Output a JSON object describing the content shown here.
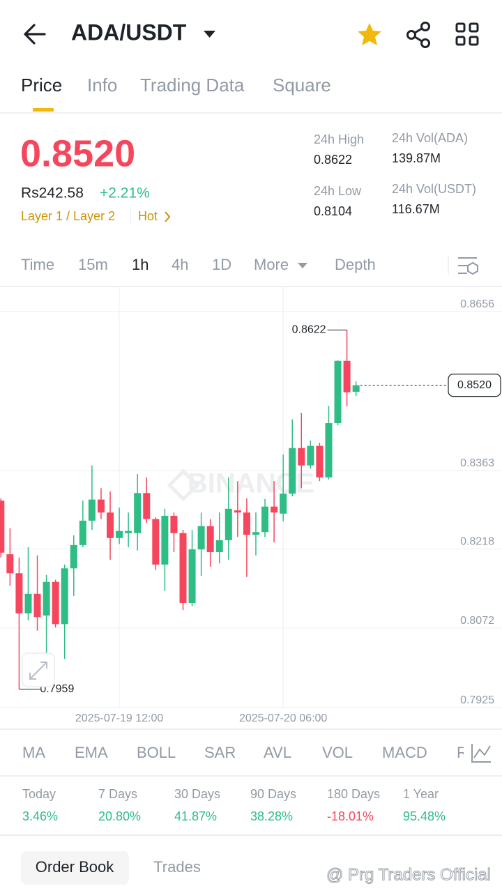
{
  "header": {
    "title": "ADA/USDT"
  },
  "tabs": [
    "Price",
    "Info",
    "Trading Data",
    "Square"
  ],
  "price": {
    "last": "0.8520",
    "fiat": "Rs242.58",
    "change": "+2.21%",
    "tags": [
      "Layer 1 / Layer 2",
      "Hot"
    ]
  },
  "stats": [
    {
      "label": "24h High",
      "value": "0.8622"
    },
    {
      "label": "24h Vol(ADA)",
      "value": "139.87M"
    },
    {
      "label": "24h Low",
      "value": "0.8104"
    },
    {
      "label": "24h Vol(USDT)",
      "value": "116.67M"
    }
  ],
  "intervals": [
    "Time",
    "15m",
    "1h",
    "4h",
    "1D",
    "More",
    "Depth"
  ],
  "chart_data": {
    "type": "candlestick",
    "categories": [
      null,
      null,
      null,
      null,
      null,
      null,
      null,
      null,
      null,
      null,
      null,
      null,
      null,
      "2025-07-19 12:00",
      null,
      null,
      null,
      null,
      null,
      null,
      null,
      null,
      null,
      null,
      null,
      null,
      null,
      null,
      null,
      null,
      null,
      "2025-07-20 06:00",
      null,
      null,
      null,
      null,
      null,
      null,
      null,
      null
    ],
    "open": [
      0.8307,
      0.8208,
      0.8173,
      0.8099,
      0.8135,
      0.8095,
      0.8157,
      0.8079,
      0.8182,
      0.8225,
      0.827,
      0.8309,
      0.8285,
      0.8238,
      0.8247,
      0.8247,
      0.8321,
      0.8273,
      0.8189,
      0.8279,
      0.8247,
      0.8118,
      0.8217,
      0.826,
      0.8212,
      0.8234,
      0.8289,
      0.8285,
      0.8244,
      0.8249,
      0.8296,
      0.8283,
      0.832,
      0.8404,
      0.8372,
      0.8408,
      0.835,
      0.845,
      0.8565,
      0.8508
    ],
    "high": [
      0.8311,
      0.8256,
      0.8202,
      0.8221,
      0.8206,
      0.817,
      0.8161,
      0.8189,
      0.8243,
      0.8307,
      0.8372,
      0.833,
      0.8324,
      0.8294,
      0.8285,
      0.8356,
      0.835,
      0.8276,
      0.8292,
      0.8285,
      0.8253,
      0.8253,
      0.8285,
      0.8273,
      0.8285,
      0.835,
      0.8343,
      0.8311,
      0.8285,
      0.831,
      0.8343,
      0.8392,
      0.8457,
      0.8469,
      0.8418,
      0.8414,
      0.8482,
      0.8566,
      0.8622,
      0.8527
    ],
    "low": [
      0.8202,
      0.815,
      0.7959,
      0.8086,
      0.8067,
      0.8024,
      0.8073,
      0.8015,
      0.8131,
      0.8221,
      0.8253,
      0.8273,
      0.8198,
      0.8227,
      0.8221,
      0.8215,
      0.8266,
      0.8179,
      0.814,
      0.8212,
      0.8105,
      0.8112,
      0.8168,
      0.8185,
      0.8191,
      0.8198,
      0.824,
      0.8166,
      0.8206,
      0.824,
      0.823,
      0.8269,
      0.8315,
      0.833,
      0.8366,
      0.8343,
      0.8346,
      0.8446,
      0.8481,
      0.85
    ],
    "close": [
      0.8211,
      0.8173,
      0.8099,
      0.8135,
      0.8092,
      0.8157,
      0.8079,
      0.8182,
      0.8225,
      0.827,
      0.8309,
      0.8285,
      0.8238,
      0.8251,
      0.8251,
      0.8321,
      0.8273,
      0.8189,
      0.8279,
      0.8247,
      0.8118,
      0.8217,
      0.826,
      0.8212,
      0.8234,
      0.8292,
      0.8285,
      0.8244,
      0.8249,
      0.8296,
      0.8285,
      0.832,
      0.8404,
      0.8372,
      0.8408,
      0.835,
      0.845,
      0.8565,
      0.8507,
      0.852
    ],
    "up_color": "#2ebd85",
    "down_color": "#f6465d",
    "ylim": [
      0.7925,
      0.8701
    ],
    "yticks": [
      0.7925,
      0.8072,
      0.8218,
      0.8363,
      0.8656
    ],
    "grid": true,
    "last_price": "0.8520",
    "watermark": "BINANCE"
  },
  "indicators": [
    "MA",
    "EMA",
    "BOLL",
    "SAR",
    "AVL",
    "VOL",
    "MACD",
    "R"
  ],
  "performance": [
    {
      "label": "Today",
      "value": "3.46%"
    },
    {
      "label": "7 Days",
      "value": "20.80%"
    },
    {
      "label": "30 Days",
      "value": "41.87%"
    },
    {
      "label": "90 Days",
      "value": "38.28%"
    },
    {
      "label": "180 Days",
      "value": "-18.01%"
    },
    {
      "label": "1 Year",
      "value": "95.48%"
    }
  ],
  "bottom_tabs": [
    "Order Book",
    "Trades"
  ],
  "footer_watermark": "@ Prg Traders Official"
}
